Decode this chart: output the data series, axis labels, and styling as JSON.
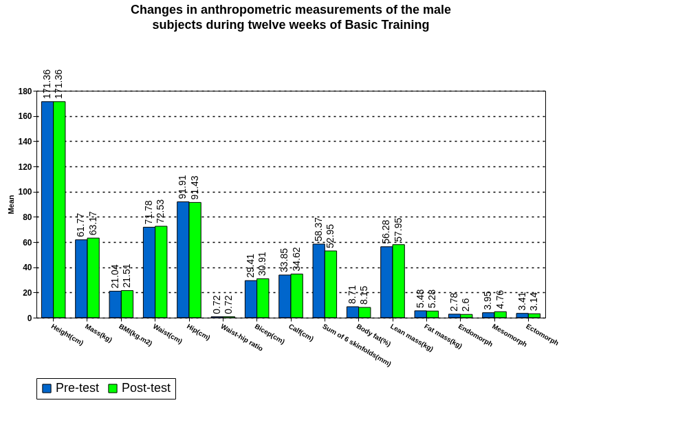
{
  "chart_data": {
    "type": "bar",
    "title": "Changes in anthropometric measurements of the male subjects during twelve weeks of Basic Training",
    "ylabel": "Mean",
    "categories": [
      "Height(cm)",
      "Mass(kg)",
      "BMI(kg.m2)",
      "Waist(cm)",
      "Hip(cm)",
      "Waist-hip ratio",
      "Bicep(cm)",
      "Calf(cm)",
      "Sum of 6 skinfolds(mm)",
      "Body fat(%)",
      "Lean mass(kg)",
      "Fat mass(kg)",
      "Endomorph",
      "Mesomorph",
      "Ectomorph"
    ],
    "series": [
      {
        "name": "Pre-test",
        "color": "#0066cc",
        "values": [
          171.36,
          61.77,
          21.04,
          71.78,
          91.91,
          0.72,
          29.41,
          33.85,
          58.37,
          8.71,
          56.28,
          5.48,
          2.78,
          3.95,
          3.41
        ]
      },
      {
        "name": "Post-test",
        "color": "#00ff00",
        "values": [
          171.36,
          63.17,
          21.51,
          72.53,
          91.43,
          0.72,
          30.91,
          34.62,
          52.95,
          8.15,
          57.95,
          5.28,
          2.6,
          4.76,
          3.14
        ]
      }
    ],
    "ylim": [
      0,
      180
    ],
    "yticks": [
      0,
      20,
      40,
      60,
      80,
      100,
      120,
      140,
      160,
      180
    ],
    "grid": "y",
    "legend": "bottom",
    "data_labels": true
  }
}
